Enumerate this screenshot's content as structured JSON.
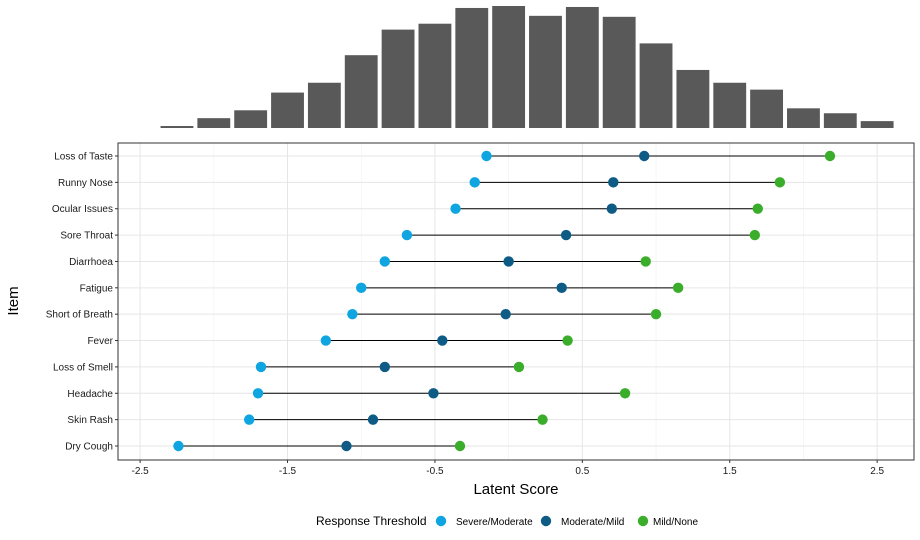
{
  "chart_data": [
    {
      "type": "bar",
      "subplot": "histogram",
      "description_of_x": "latent score",
      "bins_x_center": [
        -2.25,
        -2.0,
        -1.75,
        -1.5,
        -1.25,
        -1.0,
        -0.75,
        -0.5,
        -0.25,
        0.0,
        0.25,
        0.5,
        0.75,
        1.0,
        1.25,
        1.5,
        1.75,
        2.0,
        2.25,
        2.5
      ],
      "values": [
        2,
        10,
        18,
        36,
        46,
        74,
        100,
        106,
        122,
        124,
        114,
        123,
        113,
        86,
        59,
        46,
        39,
        20,
        15,
        7
      ],
      "color": "#595959"
    },
    {
      "type": "scatter",
      "subplot": "dumbbell",
      "xlabel": "Latent Score",
      "ylabel": "Item",
      "xlim": [
        -2.65,
        2.75
      ],
      "x_ticks": [
        "-2.5",
        "-1.5",
        "-0.5",
        "0.5",
        "1.5",
        "2.5"
      ],
      "x_tick_values": [
        -2.5,
        -1.5,
        -0.5,
        0.5,
        1.5,
        2.5
      ],
      "grid": true,
      "legend_position": "bottom",
      "legend_title": "Response Threshold",
      "categories": [
        "Loss of Taste",
        "Runny Nose",
        "Ocular Issues",
        "Sore Throat",
        "Diarrhoea",
        "Fatigue",
        "Short of Breath",
        "Fever",
        "Loss of Smell",
        "Headache",
        "Skin Rash",
        "Dry Cough"
      ],
      "series": [
        {
          "name": "Severe/Moderate",
          "color": "#0EA5E0",
          "values": [
            -0.15,
            -0.23,
            -0.36,
            -0.69,
            -0.84,
            -1.0,
            -1.06,
            -1.24,
            -1.68,
            -1.7,
            -1.76,
            -2.24
          ]
        },
        {
          "name": "Moderate/Mild",
          "color": "#0E5B86",
          "values": [
            0.92,
            0.71,
            0.7,
            0.39,
            0.0,
            0.36,
            -0.02,
            -0.45,
            -0.84,
            -0.51,
            -0.92,
            -1.1
          ]
        },
        {
          "name": "Mild/None",
          "color": "#3AAE2B",
          "values": [
            2.18,
            1.84,
            1.69,
            1.67,
            0.93,
            1.15,
            1.0,
            0.4,
            0.07,
            0.79,
            0.23,
            -0.33
          ]
        }
      ]
    }
  ]
}
